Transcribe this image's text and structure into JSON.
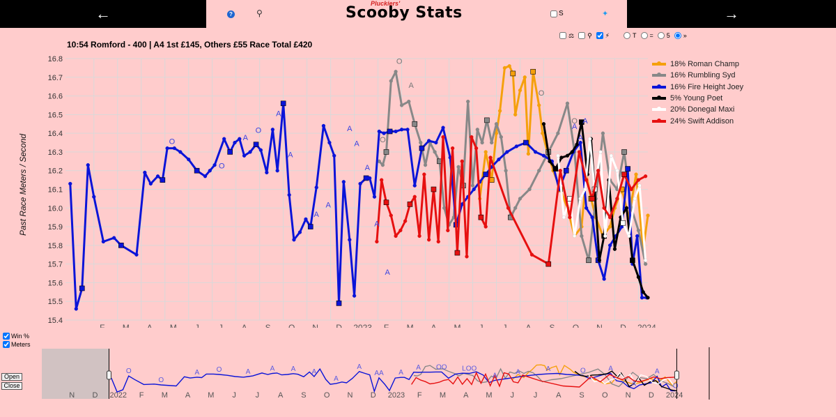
{
  "header": {
    "back_icon": "arrow-left-icon",
    "back_label": "←",
    "forward_icon": "arrow-right-icon",
    "forward_label": "→",
    "brand_title": "Scooby Stats",
    "brand_sub": "Pluckiers'",
    "help_icon": "help-icon",
    "help_label": "?",
    "trophy_icon": "trophy-icon",
    "s_checkbox_label": "S",
    "twitter_icon": "twitter-icon"
  },
  "race": {
    "title": "10:54 Romford - 400 | A4 1st £145, Others £55 Race Total £420"
  },
  "controls": {
    "options": [
      "T",
      "=",
      "5",
      "»"
    ],
    "selected_option": 3
  },
  "side": {
    "win_pct_label": "Win %",
    "meters_label": "Meters",
    "open_label": "Open",
    "close_label": "Close"
  },
  "colors": {
    "background": "#ffcccc",
    "roman_champ": "#f5a00c",
    "rumbling_syd": "#888888",
    "fire_height_joey": "#0a14d8",
    "young_poet": "#000000",
    "donegal_maxi": "#ffffff",
    "swift_addison": "#e61010"
  },
  "chart_data": {
    "type": "line",
    "title": "10:54 Romford - 400 | A4 1st £145, Others £55 Race Total £420",
    "ylabel": "Past Race Meters / Second",
    "xlabel": "",
    "ylim": [
      15.4,
      16.8
    ],
    "yticks": [
      15.4,
      15.5,
      15.6,
      15.7,
      15.8,
      15.9,
      16.0,
      16.1,
      16.2,
      16.3,
      16.4,
      16.5,
      16.6,
      16.7,
      16.8
    ],
    "x_unit": "month index (0 = Jan 2022)",
    "xlim": [
      -0.2,
      24.4
    ],
    "xticks": [
      {
        "x": 1,
        "label": "F"
      },
      {
        "x": 2,
        "label": "M"
      },
      {
        "x": 3,
        "label": "A"
      },
      {
        "x": 4,
        "label": "M"
      },
      {
        "x": 5,
        "label": "J"
      },
      {
        "x": 6,
        "label": "J"
      },
      {
        "x": 7,
        "label": "A"
      },
      {
        "x": 8,
        "label": "S"
      },
      {
        "x": 9,
        "label": "O"
      },
      {
        "x": 10,
        "label": "N"
      },
      {
        "x": 11,
        "label": "D"
      },
      {
        "x": 12,
        "label": "2023"
      },
      {
        "x": 13,
        "label": "F"
      },
      {
        "x": 14,
        "label": "M"
      },
      {
        "x": 15,
        "label": "A"
      },
      {
        "x": 16,
        "label": "M"
      },
      {
        "x": 17,
        "label": "J"
      },
      {
        "x": 18,
        "label": "J"
      },
      {
        "x": 19,
        "label": "A"
      },
      {
        "x": 20,
        "label": "S"
      },
      {
        "x": 21,
        "label": "O"
      },
      {
        "x": 22,
        "label": "N"
      },
      {
        "x": 23,
        "label": "D"
      },
      {
        "x": 24,
        "label": "2024"
      }
    ],
    "grid": true,
    "legend_position": "top-right",
    "series": [
      {
        "name": "18% Roman Champ",
        "color": "#f5a00c",
        "x": [
          17.3,
          17.55,
          17.8,
          18.0,
          18.15,
          18.35,
          18.55,
          18.7,
          18.8,
          19.0,
          19.2,
          19.35,
          19.55,
          19.8,
          19.95,
          20.15,
          20.4,
          20.7,
          21.0,
          21.3,
          21.6,
          21.8,
          22.0,
          22.2,
          22.5,
          22.8,
          23.0,
          23.3,
          23.6,
          23.9,
          24.2,
          24.4
        ],
        "y": [
          16.05,
          16.3,
          16.15,
          16.4,
          16.52,
          16.75,
          16.76,
          16.72,
          16.5,
          16.63,
          16.7,
          16.29,
          16.73,
          16.55,
          16.4,
          16.3,
          16.2,
          16.1,
          16.0,
          15.85,
          15.9,
          16.18,
          16.05,
          15.95,
          15.85,
          15.9,
          16.0,
          16.1,
          15.95,
          16.18,
          15.78,
          15.96
        ]
      },
      {
        "name": "16% Rumbling Syd",
        "color": "#888888",
        "x": [
          13.05,
          13.2,
          13.35,
          13.55,
          13.75,
          14.0,
          14.3,
          14.55,
          14.8,
          15.0,
          15.2,
          15.4,
          15.6,
          15.8,
          16.0,
          16.2,
          16.4,
          16.6,
          16.8,
          17.0,
          17.2,
          17.4,
          17.6,
          17.8,
          18.0,
          18.2,
          18.4,
          18.6,
          18.8,
          19.0,
          19.4,
          19.8,
          20.2,
          20.6,
          21.0,
          21.3,
          21.6,
          21.9,
          22.2,
          22.5,
          22.8,
          23.1,
          23.4,
          23.7,
          24.0,
          24.3
        ],
        "y": [
          16.25,
          16.23,
          16.3,
          16.68,
          16.73,
          16.55,
          16.57,
          16.45,
          16.35,
          16.23,
          16.35,
          16.3,
          16.25,
          16.0,
          15.91,
          15.95,
          16.22,
          16.12,
          16.57,
          16.12,
          16.42,
          16.35,
          16.47,
          16.35,
          16.45,
          16.38,
          16.2,
          15.95,
          16.0,
          16.05,
          16.1,
          16.2,
          16.3,
          16.4,
          16.56,
          16.3,
          15.85,
          15.72,
          16.05,
          16.4,
          16.15,
          16.1,
          16.3,
          16.0,
          15.88,
          15.7
        ]
      },
      {
        "name": "16% Fire Height Joey",
        "color": "#0a14d8",
        "x": [
          0.0,
          0.25,
          0.5,
          0.75,
          1.0,
          1.4,
          1.85,
          2.15,
          2.8,
          3.15,
          3.4,
          3.7,
          3.9,
          4.1,
          4.4,
          4.65,
          5.0,
          5.35,
          5.7,
          5.9,
          6.1,
          6.5,
          6.75,
          6.95,
          7.15,
          7.35,
          7.6,
          7.85,
          8.05,
          8.3,
          8.55,
          8.75,
          9.0,
          9.25,
          9.45,
          9.7,
          9.95,
          10.15,
          10.4,
          10.7,
          10.95,
          11.15,
          11.35,
          11.55,
          11.8,
          12.0,
          12.25,
          12.5,
          12.65,
          12.85,
          13.05,
          13.25,
          13.5,
          13.75,
          14.0,
          14.25,
          14.55,
          14.85,
          15.15,
          15.45,
          15.75,
          16.05,
          16.3,
          16.55,
          16.8,
          17.05,
          17.3,
          17.55,
          17.8,
          18.1,
          18.45,
          18.85,
          19.25,
          19.65,
          20.0,
          20.35,
          20.65,
          20.95,
          21.25,
          21.55,
          21.8,
          22.05,
          22.3,
          22.55,
          22.8,
          23.05,
          23.3,
          23.55,
          23.75,
          23.95,
          24.15,
          24.35
        ],
        "y": [
          16.13,
          15.46,
          15.57,
          16.23,
          16.06,
          15.82,
          15.84,
          15.8,
          15.75,
          16.19,
          16.13,
          16.17,
          16.15,
          16.32,
          16.32,
          16.3,
          16.26,
          16.2,
          16.17,
          16.2,
          16.23,
          16.37,
          16.3,
          16.35,
          16.37,
          16.28,
          16.3,
          16.34,
          16.31,
          16.19,
          16.42,
          16.2,
          16.56,
          16.07,
          15.83,
          15.87,
          15.94,
          15.9,
          16.11,
          16.44,
          16.35,
          16.28,
          15.49,
          16.14,
          15.83,
          15.53,
          16.13,
          16.16,
          16.16,
          16.06,
          16.41,
          16.4,
          16.41,
          16.41,
          16.42,
          16.42,
          16.12,
          16.32,
          16.36,
          16.35,
          16.43,
          16.27,
          15.91,
          16.02,
          16.06,
          16.1,
          16.14,
          16.18,
          16.22,
          16.26,
          16.3,
          16.33,
          16.35,
          16.3,
          16.28,
          16.25,
          16.1,
          16.2,
          16.3,
          16.35,
          16.0,
          15.95,
          15.72,
          15.62,
          15.8,
          15.85,
          15.9,
          16.21,
          15.7,
          15.85,
          15.52,
          15.52
        ]
      },
      {
        "name": "5% Young Poet",
        "color": "#000000",
        "x": [
          20.0,
          20.25,
          20.5,
          20.75,
          21.0,
          21.2,
          21.4,
          21.6,
          21.85,
          22.0,
          22.15,
          22.35,
          22.55,
          22.75,
          23.0,
          23.25,
          23.5,
          23.75,
          24.0,
          24.2,
          24.4
        ],
        "y": [
          16.45,
          16.25,
          16.21,
          16.27,
          16.28,
          16.3,
          16.34,
          16.46,
          16.18,
          16.37,
          16.1,
          15.72,
          15.85,
          16.15,
          15.78,
          15.95,
          16.0,
          15.72,
          15.63,
          15.55,
          15.52
        ]
      },
      {
        "name": "20% Donegal Maxi",
        "color": "#ffffff",
        "x": [
          20.6,
          20.85,
          21.1,
          21.3,
          21.55,
          21.75,
          21.95,
          22.15,
          22.4,
          22.6,
          22.85,
          23.1,
          23.35,
          23.6,
          23.85,
          24.05,
          24.3
        ],
        "y": [
          16.28,
          15.95,
          16.05,
          15.85,
          16.05,
          16.1,
          16.37,
          16.1,
          16.3,
          15.85,
          16.28,
          16.2,
          15.92,
          15.85,
          16.05,
          16.12,
          15.72
        ]
      },
      {
        "name": "24% Swift Addison",
        "color": "#e61010",
        "x": [
          12.95,
          13.15,
          13.35,
          13.55,
          13.75,
          13.95,
          14.15,
          14.35,
          14.55,
          14.75,
          14.95,
          15.15,
          15.35,
          15.55,
          15.75,
          15.95,
          16.15,
          16.35,
          16.55,
          16.75,
          16.95,
          17.15,
          17.35,
          17.55,
          17.75,
          18.5,
          19.5,
          20.2,
          20.7,
          21.1,
          21.5,
          21.8,
          22.05,
          22.3,
          22.55,
          22.8,
          23.1,
          23.4,
          23.7,
          24.0,
          24.3
        ],
        "y": [
          15.82,
          16.15,
          16.03,
          15.96,
          15.85,
          15.88,
          15.93,
          16.02,
          16.06,
          15.85,
          16.18,
          15.83,
          16.1,
          15.82,
          16.38,
          15.88,
          16.32,
          15.76,
          16.25,
          15.74,
          16.38,
          16.32,
          15.95,
          15.9,
          16.27,
          16.0,
          15.75,
          15.7,
          16.2,
          15.95,
          16.3,
          16.15,
          16.05,
          16.2,
          16.0,
          15.95,
          16.05,
          16.18,
          16.1,
          16.15,
          16.17
        ]
      }
    ],
    "annotations": [
      {
        "series": 2,
        "x": 4.3,
        "y": 16.32,
        "text": "O"
      },
      {
        "series": 2,
        "x": 6.4,
        "y": 16.19,
        "text": "O"
      },
      {
        "series": 2,
        "x": 7.4,
        "y": 16.34,
        "text": "A"
      },
      {
        "series": 2,
        "x": 7.95,
        "y": 16.38,
        "text": "O"
      },
      {
        "series": 2,
        "x": 8.8,
        "y": 16.47,
        "text": "A"
      },
      {
        "series": 2,
        "x": 9.3,
        "y": 16.25,
        "text": "A"
      },
      {
        "series": 2,
        "x": 10.4,
        "y": 15.93,
        "text": "A"
      },
      {
        "series": 2,
        "x": 10.9,
        "y": 15.98,
        "text": "A"
      },
      {
        "series": 2,
        "x": 11.8,
        "y": 16.39,
        "text": "A"
      },
      {
        "series": 2,
        "x": 12.1,
        "y": 16.31,
        "text": "A"
      },
      {
        "series": 2,
        "x": 12.55,
        "y": 16.18,
        "text": "A"
      },
      {
        "series": 2,
        "x": 12.95,
        "y": 15.88,
        "text": "A"
      },
      {
        "series": 2,
        "x": 13.4,
        "y": 15.62,
        "text": "A"
      },
      {
        "series": 2,
        "x": 21.3,
        "y": 16.4,
        "text": "A"
      },
      {
        "series": 2,
        "x": 21.75,
        "y": 16.43,
        "text": "A"
      },
      {
        "series": 1,
        "x": 13.2,
        "y": 16.33,
        "text": "O"
      },
      {
        "series": 1,
        "x": 13.9,
        "y": 16.75,
        "text": "O"
      },
      {
        "series": 1,
        "x": 14.4,
        "y": 16.62,
        "text": "A"
      },
      {
        "series": 0,
        "x": 19.9,
        "y": 16.58,
        "text": "O"
      },
      {
        "series": 3,
        "x": 21.3,
        "y": 16.43,
        "text": "O"
      },
      {
        "series": 2,
        "x": 21.55,
        "y": 16.34,
        "text": "A"
      }
    ]
  },
  "overview": {
    "tick_labels": [
      {
        "x": -2,
        "label": "N"
      },
      {
        "x": -1,
        "label": "D"
      },
      {
        "x": 0,
        "label": "2022"
      },
      {
        "x": 1,
        "label": "F"
      },
      {
        "x": 2,
        "label": "M"
      },
      {
        "x": 3,
        "label": "A"
      },
      {
        "x": 4,
        "label": "M"
      },
      {
        "x": 5,
        "label": "J"
      },
      {
        "x": 6,
        "label": "J"
      },
      {
        "x": 7,
        "label": "A"
      },
      {
        "x": 8,
        "label": "S"
      },
      {
        "x": 9,
        "label": "O"
      },
      {
        "x": 10,
        "label": "N"
      },
      {
        "x": 11,
        "label": "D"
      },
      {
        "x": 12,
        "label": "2023"
      },
      {
        "x": 13,
        "label": "F"
      },
      {
        "x": 14,
        "label": "M"
      },
      {
        "x": 15,
        "label": "A"
      },
      {
        "x": 16,
        "label": "M"
      },
      {
        "x": 17,
        "label": "J"
      },
      {
        "x": 18,
        "label": "J"
      },
      {
        "x": 19,
        "label": "A"
      },
      {
        "x": 20,
        "label": "S"
      },
      {
        "x": 21,
        "label": "O"
      },
      {
        "x": 22,
        "label": "N"
      },
      {
        "x": 23,
        "label": "D"
      },
      {
        "x": 24,
        "label": "2024"
      }
    ],
    "xlim": [
      -3,
      25.8
    ],
    "window": [
      -0.1,
      24.4
    ],
    "marker_labels": [
      "O",
      "O",
      "A",
      "O",
      "A",
      "A",
      "A",
      "A",
      "A",
      "A",
      "AA",
      "A",
      "A",
      "OO",
      "LOO",
      "A",
      "A",
      "A",
      "O",
      "A",
      "A",
      "A",
      "O"
    ]
  }
}
